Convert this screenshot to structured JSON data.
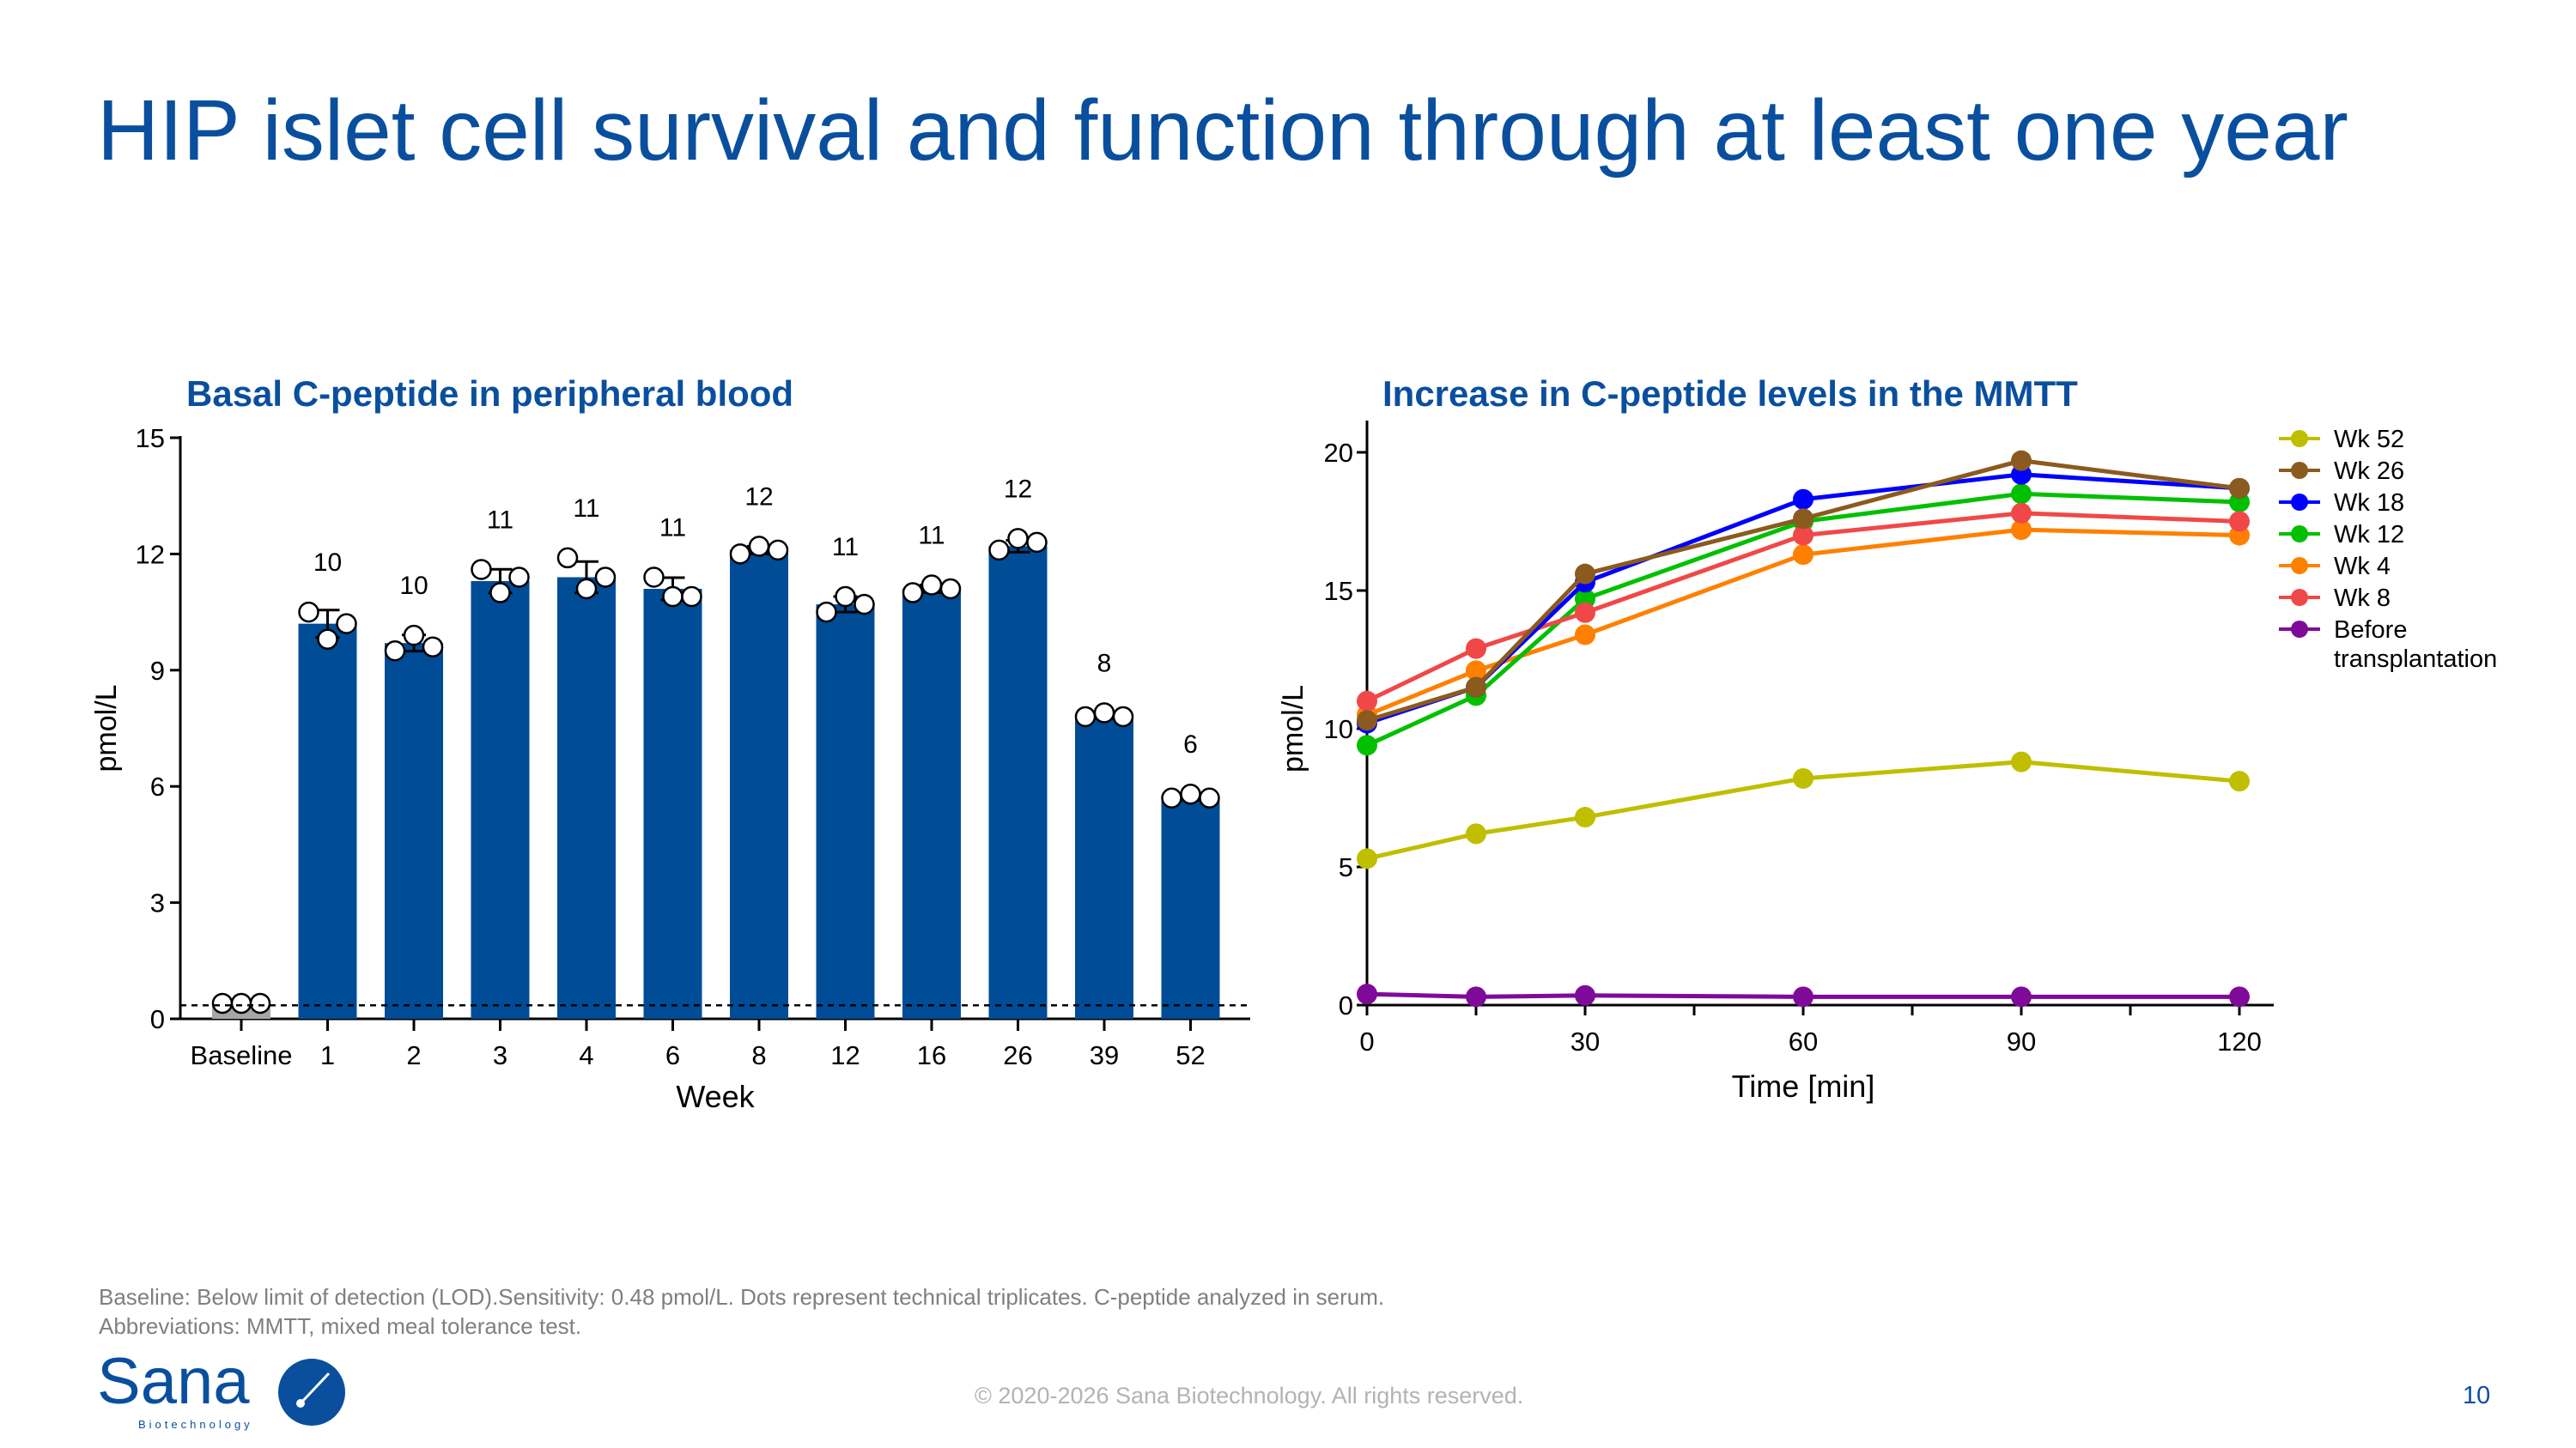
{
  "slide": {
    "title": "HIP islet cell survival and function through at least one year",
    "footnote_1": "Baseline: Below limit of detection (LOD).Sensitivity: 0.48 pmol/L. Dots represent technical triplicates. C-peptide analyzed in serum.",
    "footnote_2": "Abbreviations: MMTT, mixed meal tolerance test.",
    "copyright": "© 2020-2026 Sana Biotechnology. All rights reserved.",
    "page_number": "10",
    "logo_text": "Sana",
    "logo_subtext": "Biotechnology"
  },
  "colors": {
    "brand": "#0a4f9e",
    "bar": "#004c97",
    "baseline_bar": "#a6a6a6"
  },
  "chart_data": [
    {
      "type": "bar",
      "title": "Basal C-peptide in peripheral blood",
      "xlabel": "Week",
      "ylabel": "pmol/L",
      "ylim": [
        0,
        15
      ],
      "yticks": [
        0,
        3,
        6,
        9,
        12,
        15
      ],
      "categories": [
        "Baseline",
        "1",
        "2",
        "3",
        "4",
        "6",
        "8",
        "12",
        "16",
        "26",
        "39",
        "52"
      ],
      "values": [
        0.35,
        10.2,
        9.7,
        11.3,
        11.4,
        11.1,
        12.1,
        10.7,
        11.1,
        12.2,
        7.8,
        5.7
      ],
      "data_labels": [
        "",
        "10",
        "10",
        "11",
        "11",
        "11",
        "12",
        "11",
        "11",
        "12",
        "8",
        "6"
      ],
      "replicates": [
        [
          0.4,
          0.4,
          0.4
        ],
        [
          10.5,
          9.8,
          10.2
        ],
        [
          9.5,
          9.9,
          9.6
        ],
        [
          11.6,
          11.0,
          11.4
        ],
        [
          11.9,
          11.1,
          11.4
        ],
        [
          11.4,
          10.9,
          10.9
        ],
        [
          12.0,
          12.2,
          12.1
        ],
        [
          10.5,
          10.9,
          10.7
        ],
        [
          11.0,
          11.2,
          11.1
        ],
        [
          12.1,
          12.4,
          12.3
        ],
        [
          7.8,
          7.9,
          7.8
        ],
        [
          5.7,
          5.8,
          5.7
        ]
      ],
      "lod_line": 0.35,
      "grid": false
    },
    {
      "type": "line",
      "title": "Increase in C-peptide levels in the MMTT",
      "xlabel": "Time [min]",
      "ylabel": "pmol/L",
      "xlim": [
        0,
        120
      ],
      "ylim": [
        0,
        20
      ],
      "xticks": [
        0,
        30,
        60,
        90,
        120
      ],
      "yticks": [
        0,
        5,
        10,
        15,
        20
      ],
      "x": [
        0,
        15,
        30,
        60,
        90,
        120
      ],
      "legend": "right",
      "grid": false,
      "series": [
        {
          "name": "Wk 52",
          "color": "#bfbf00",
          "values": [
            5.3,
            6.2,
            6.8,
            8.2,
            8.8,
            8.1
          ]
        },
        {
          "name": "Wk 26",
          "color": "#8b5a1e",
          "values": [
            10.3,
            11.5,
            15.6,
            17.6,
            19.7,
            18.7
          ]
        },
        {
          "name": "Wk 18",
          "color": "#0000ff",
          "values": [
            10.2,
            11.5,
            15.3,
            18.3,
            19.2,
            18.7
          ]
        },
        {
          "name": "Wk 12",
          "color": "#00c000",
          "values": [
            9.4,
            11.2,
            14.7,
            17.5,
            18.5,
            18.2
          ]
        },
        {
          "name": "Wk 4",
          "color": "#ff8000",
          "values": [
            10.5,
            12.1,
            13.4,
            16.3,
            17.2,
            17.0
          ]
        },
        {
          "name": "Wk 8",
          "color": "#f04848",
          "values": [
            11.0,
            12.9,
            14.2,
            17.0,
            17.8,
            17.5
          ]
        },
        {
          "name": "Before transplantation",
          "color": "#7f0a9a",
          "values": [
            0.4,
            0.3,
            0.35,
            0.3,
            0.3,
            0.3
          ]
        }
      ]
    }
  ]
}
